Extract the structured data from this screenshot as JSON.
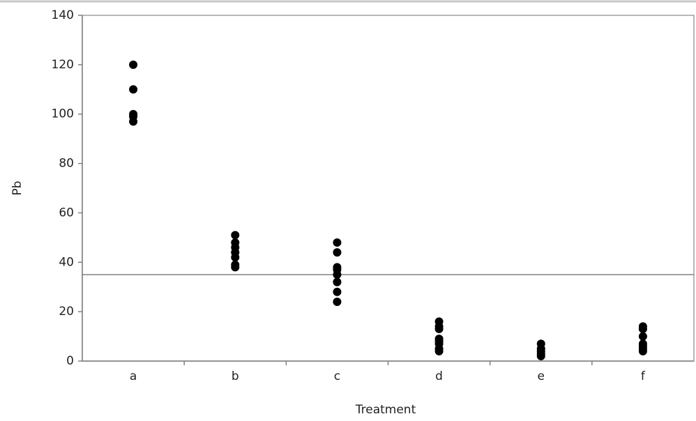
{
  "chart_data": {
    "type": "strip",
    "x_label": "Treatment",
    "y_label": "Pb",
    "categories": [
      "a",
      "b",
      "c",
      "d",
      "e",
      "f"
    ],
    "values": [
      [
        120,
        110,
        100,
        99,
        97
      ],
      [
        51,
        48,
        46,
        44,
        42,
        39,
        38
      ],
      [
        48,
        44,
        38,
        37,
        35,
        32,
        28,
        24
      ],
      [
        16,
        14,
        13,
        9,
        8,
        7,
        5,
        4
      ],
      [
        7,
        5,
        4,
        3,
        2
      ],
      [
        14,
        13,
        10,
        7,
        6,
        5,
        4
      ]
    ],
    "color": "#000000",
    "hline": 35,
    "ylim": [
      0,
      140
    ],
    "yticks": [
      0,
      20,
      40,
      60,
      80,
      100,
      120,
      140
    ]
  }
}
